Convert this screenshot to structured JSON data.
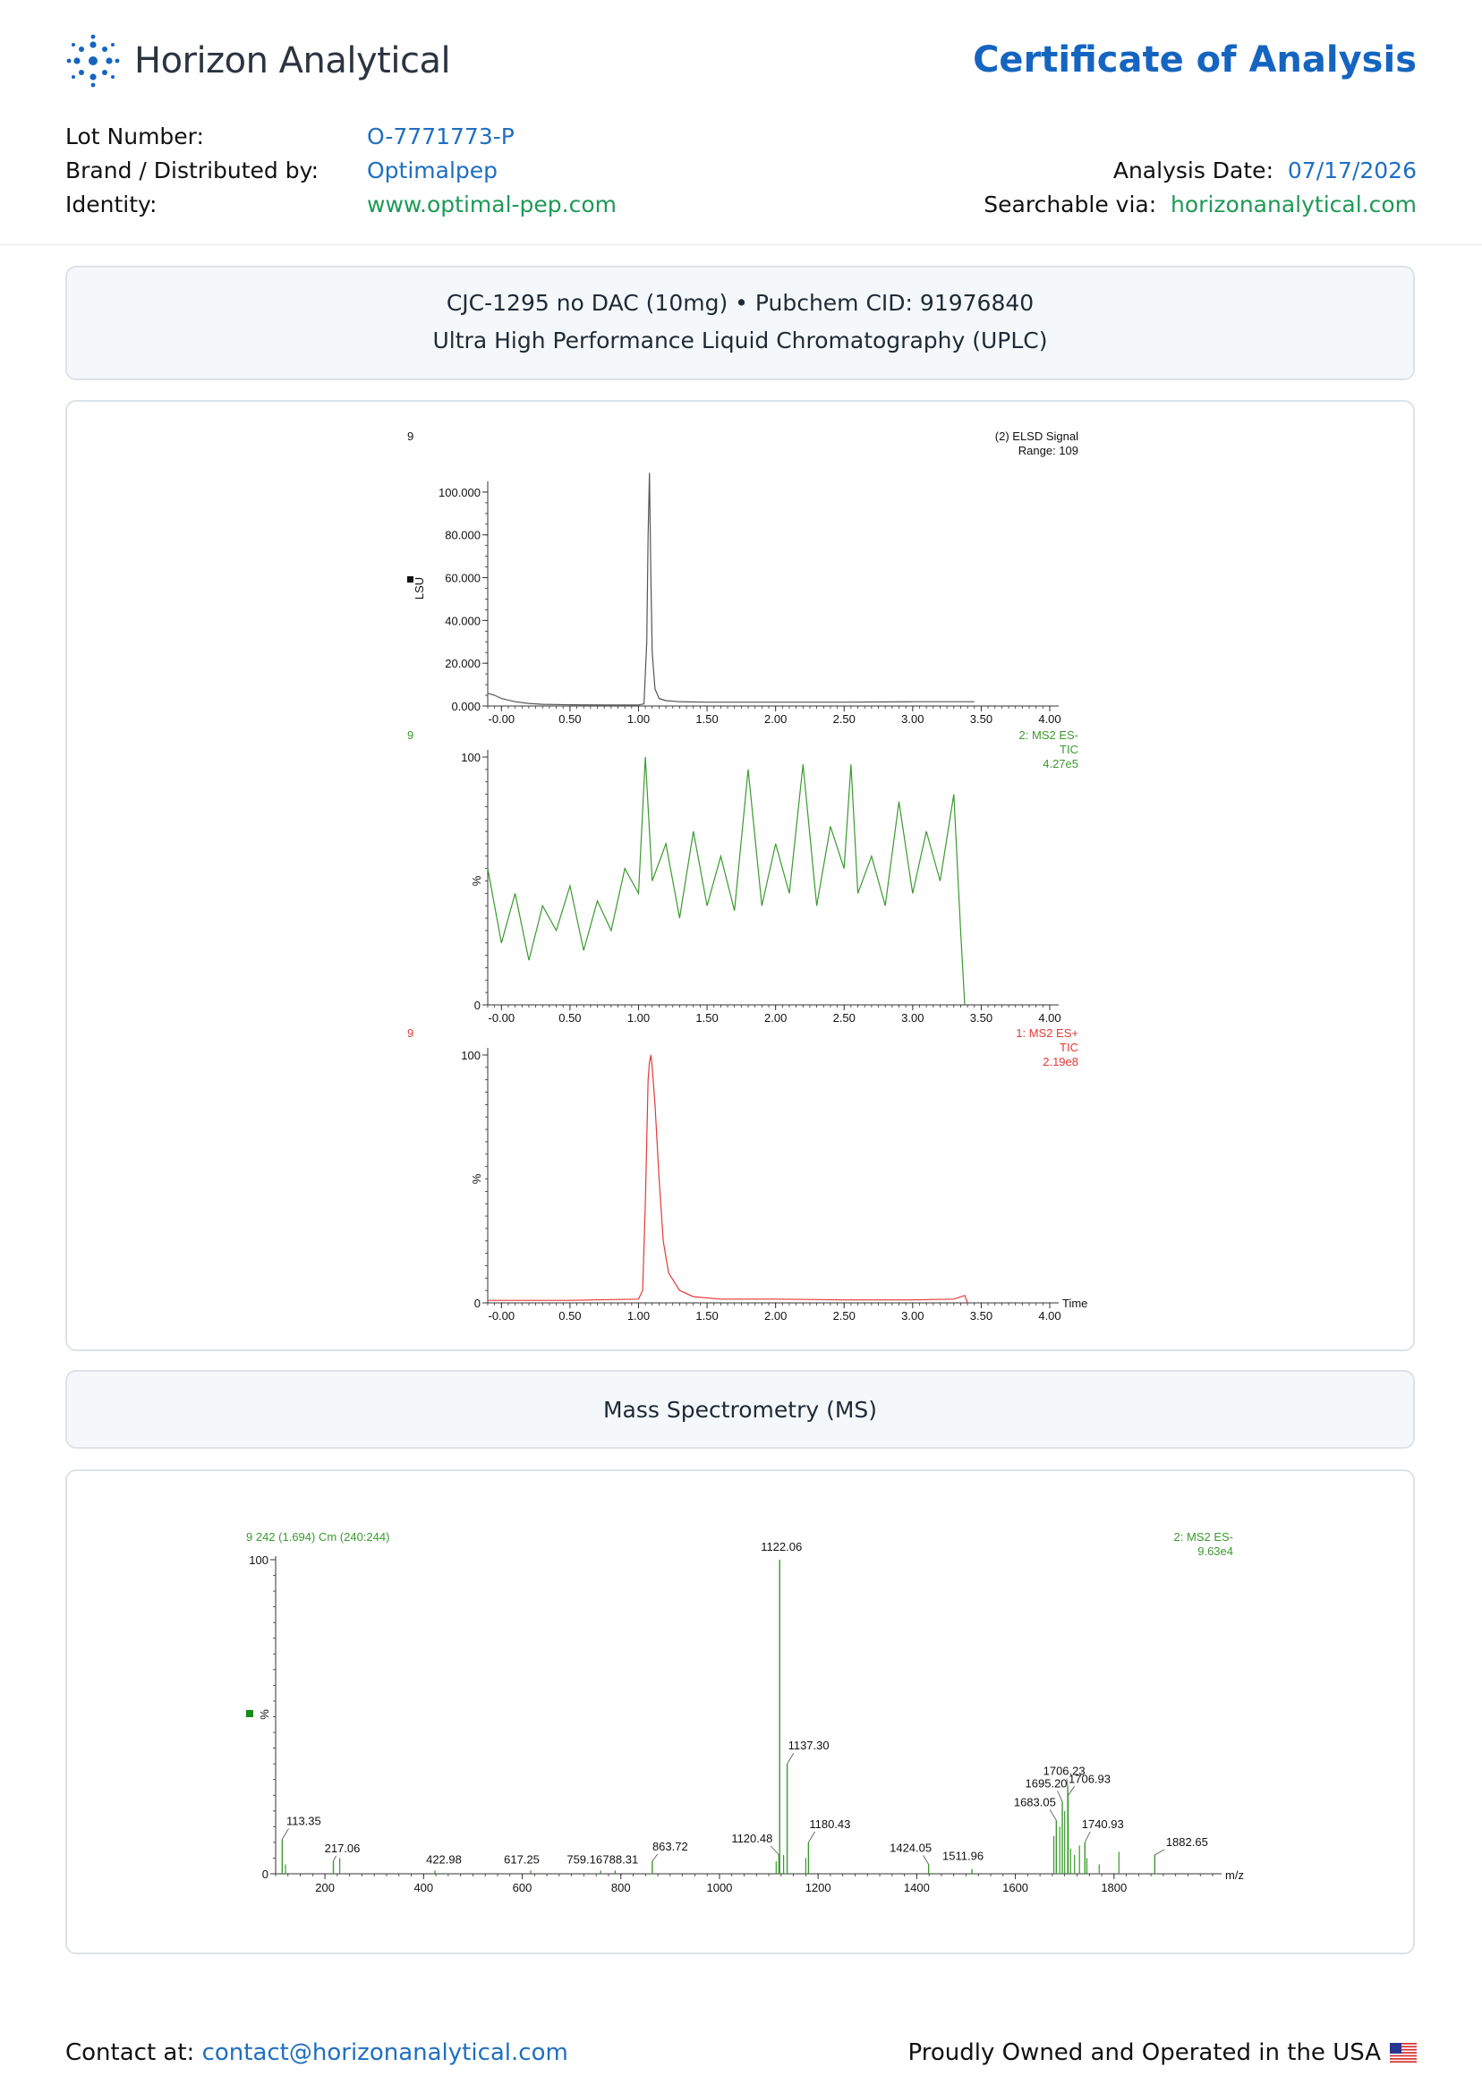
{
  "header": {
    "brand": "Horizon Analytical",
    "doc_title": "Certificate of Analysis",
    "lot_label": "Lot Number:",
    "lot_value": "O-7771773-P",
    "brand_label": "Brand / Distributed by:",
    "brand_value": "Optimalpep",
    "identity_label": "Identity:",
    "identity_value": "www.optimal-pep.com",
    "date_label": "Analysis Date:",
    "date_value": "07/17/2026",
    "search_label": "Searchable via:",
    "search_value": "horizonanalytical.com"
  },
  "uplc_section": {
    "line1": "CJC-1295 no DAC (10mg) • Pubchem CID: 91976840",
    "line2": "Ultra High Performance Liquid Chromatography (UPLC)"
  },
  "ms_section": {
    "title": "Mass Spectrometry (MS)"
  },
  "footer": {
    "contact_label": "Contact at:",
    "contact_email": "contact@horizonanalytical.com",
    "usa_text": "Proudly Owned and Operated in the USA"
  },
  "colors": {
    "brand_blue": "#1565c0",
    "link_blue": "#1e6fc1",
    "green": "#1d9a56",
    "elsd": "#555555",
    "ms_neg": "#3a9a2e",
    "ms_pos": "#e53935"
  },
  "chart_data": [
    {
      "type": "line",
      "panel_id": "9",
      "title": "(2) ELSD Signal",
      "subtitle": "Range: 109",
      "ylabel": "LSU",
      "xlim": [
        -0.1,
        4.0
      ],
      "ylim": [
        0,
        110
      ],
      "yticks": [
        "0.000",
        "20.000",
        "40.000",
        "60.000",
        "80.000",
        "100.000"
      ],
      "ytick_values": [
        0,
        20,
        40,
        60,
        80,
        100
      ],
      "xticks": [
        "-0.00",
        "0.50",
        "1.00",
        "1.50",
        "2.00",
        "2.50",
        "3.00",
        "3.50",
        "4.00"
      ],
      "x": [
        -0.1,
        -0.05,
        0.0,
        0.1,
        0.2,
        0.3,
        0.5,
        0.8,
        1.0,
        1.04,
        1.06,
        1.07,
        1.08,
        1.09,
        1.1,
        1.12,
        1.15,
        1.2,
        1.3,
        1.5,
        2.0,
        2.5,
        3.0,
        3.45
      ],
      "y": [
        6,
        5,
        3.5,
        2,
        1.2,
        0.8,
        0.6,
        0.5,
        0.5,
        1,
        30,
        80,
        109,
        60,
        25,
        8,
        3.5,
        2.5,
        2,
        1.8,
        1.8,
        1.8,
        2,
        2
      ]
    },
    {
      "type": "line",
      "panel_id": "9",
      "title": "2: MS2 ES-",
      "subtitle": "TIC",
      "intensity": "4.27e5",
      "ylabel": "%",
      "xlim": [
        -0.1,
        4.0
      ],
      "ylim": [
        0,
        100
      ],
      "yticks": [
        "0",
        "100"
      ],
      "xticks": [
        "-0.00",
        "0.50",
        "1.00",
        "1.50",
        "2.00",
        "2.50",
        "3.00",
        "3.50",
        "4.00"
      ],
      "x": [
        -0.1,
        0.0,
        0.1,
        0.2,
        0.3,
        0.4,
        0.5,
        0.6,
        0.7,
        0.8,
        0.9,
        1.0,
        1.05,
        1.1,
        1.2,
        1.3,
        1.4,
        1.5,
        1.6,
        1.7,
        1.8,
        1.9,
        2.0,
        2.1,
        2.2,
        2.3,
        2.4,
        2.5,
        2.55,
        2.6,
        2.7,
        2.8,
        2.9,
        3.0,
        3.1,
        3.2,
        3.3,
        3.35,
        3.38
      ],
      "y": [
        55,
        25,
        45,
        18,
        40,
        30,
        48,
        22,
        42,
        30,
        55,
        45,
        100,
        50,
        65,
        35,
        70,
        40,
        60,
        38,
        95,
        40,
        65,
        45,
        97,
        40,
        72,
        55,
        97,
        45,
        60,
        40,
        82,
        45,
        70,
        50,
        85,
        30,
        0
      ]
    },
    {
      "type": "line",
      "panel_id": "9",
      "title": "1: MS2 ES+",
      "subtitle": "TIC",
      "intensity": "2.19e8",
      "ylabel": "%",
      "xlabel": "Time",
      "xlim": [
        -0.1,
        4.0
      ],
      "ylim": [
        0,
        100
      ],
      "yticks": [
        "0",
        "100"
      ],
      "xticks": [
        "-0.00",
        "0.50",
        "1.00",
        "1.50",
        "2.00",
        "2.50",
        "3.00",
        "3.50",
        "4.00"
      ],
      "x": [
        -0.1,
        0.5,
        1.0,
        1.03,
        1.05,
        1.07,
        1.08,
        1.09,
        1.1,
        1.12,
        1.15,
        1.18,
        1.22,
        1.3,
        1.4,
        1.6,
        2.0,
        2.5,
        3.0,
        3.3,
        3.38,
        3.4
      ],
      "y": [
        1,
        1,
        1.5,
        5,
        40,
        90,
        97,
        100,
        95,
        80,
        50,
        25,
        12,
        5,
        2.5,
        1.5,
        1.5,
        1.2,
        1.2,
        1.5,
        3,
        0
      ]
    },
    {
      "type": "bar",
      "scan_label": "9 242 (1.694) Cm (240:244)",
      "title": "2: MS2 ES-",
      "intensity": "9.63e4",
      "ylabel": "%",
      "xlabel": "m/z",
      "xlim": [
        100,
        2000
      ],
      "ylim": [
        0,
        100
      ],
      "yticks": [
        "0",
        "100"
      ],
      "xticks": [
        "200",
        "400",
        "600",
        "800",
        "1000",
        "1200",
        "1400",
        "1600",
        "1800"
      ],
      "peaks": [
        {
          "mz": 113.35,
          "value": 11,
          "label": "113.35"
        },
        {
          "mz": 217.06,
          "value": 4,
          "label": "217.06"
        },
        {
          "mz": 422.98,
          "value": 1,
          "label": "422.98"
        },
        {
          "mz": 617.25,
          "value": 1,
          "label": "617.25"
        },
        {
          "mz": 759.16,
          "value": 1,
          "label": "759.16"
        },
        {
          "mz": 788.31,
          "value": 1,
          "label": "788.31"
        },
        {
          "mz": 863.72,
          "value": 4,
          "label": "863.72"
        },
        {
          "mz": 1120.48,
          "value": 6,
          "label": "1120.48"
        },
        {
          "mz": 1122.06,
          "value": 100,
          "label": "1122.06"
        },
        {
          "mz": 1137.3,
          "value": 35,
          "label": "1137.30"
        },
        {
          "mz": 1180.43,
          "value": 10,
          "label": "1180.43"
        },
        {
          "mz": 1424.05,
          "value": 3,
          "label": "1424.05"
        },
        {
          "mz": 1511.96,
          "value": 1.5,
          "label": "1511.96"
        },
        {
          "mz": 1683.05,
          "value": 17,
          "label": "1683.05"
        },
        {
          "mz": 1695.2,
          "value": 23,
          "label": "1695.20"
        },
        {
          "mz": 1706.23,
          "value": 28,
          "label": "1706.23"
        },
        {
          "mz": 1706.93,
          "value": 25,
          "label": "1706.93"
        },
        {
          "mz": 1740.93,
          "value": 10,
          "label": "1740.93"
        },
        {
          "mz": 1882.65,
          "value": 6,
          "label": "1882.65"
        }
      ],
      "minor_peaks": [
        {
          "mz": 120,
          "value": 3
        },
        {
          "mz": 230,
          "value": 5
        },
        {
          "mz": 1115,
          "value": 4
        },
        {
          "mz": 1130,
          "value": 6
        },
        {
          "mz": 1175,
          "value": 5
        },
        {
          "mz": 1678,
          "value": 12
        },
        {
          "mz": 1690,
          "value": 15
        },
        {
          "mz": 1700,
          "value": 20
        },
        {
          "mz": 1712,
          "value": 8
        },
        {
          "mz": 1720,
          "value": 6
        },
        {
          "mz": 1730,
          "value": 9
        },
        {
          "mz": 1745,
          "value": 5
        },
        {
          "mz": 1770,
          "value": 3
        },
        {
          "mz": 1810,
          "value": 7
        }
      ]
    }
  ]
}
